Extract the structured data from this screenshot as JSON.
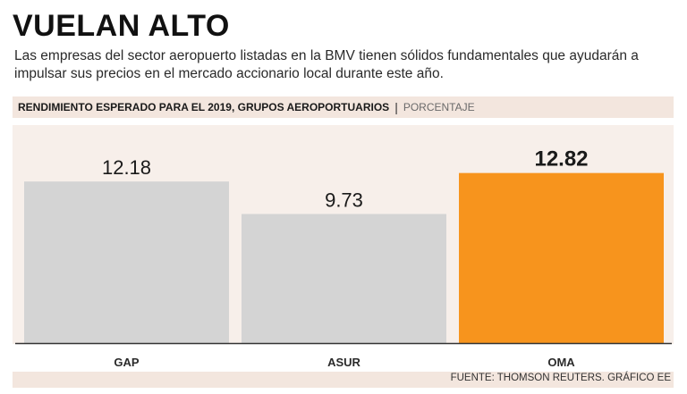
{
  "header": {
    "title": "VUELAN ALTO",
    "subtitle": "Las empresas del sector aeropuerto listadas en la BMV tienen sólidos fundamentales que ayudarán a impulsar sus precios en el mercado accionario local durante este año."
  },
  "chart_data": {
    "type": "bar",
    "title": "RENDIMIENTO ESPERADO PARA EL 2019, GRUPOS AEROPORTUARIOS",
    "unit_label": "PORCENTAJE",
    "categories": [
      "GAP",
      "ASUR",
      "OMA"
    ],
    "values": [
      12.18,
      9.73,
      12.82
    ],
    "value_labels": [
      "12.18",
      "9.73",
      "12.82"
    ],
    "highlight_index": 2,
    "colors": {
      "default": "#d4d4d4",
      "highlight": "#f7941d",
      "baseline": "#333333"
    },
    "ylim": [
      0,
      16.5
    ],
    "xlabel": "",
    "ylabel": "",
    "grid": false
  },
  "footer": {
    "source": "FUENTE: THOMSON REUTERS. GRÁFICO EE"
  }
}
